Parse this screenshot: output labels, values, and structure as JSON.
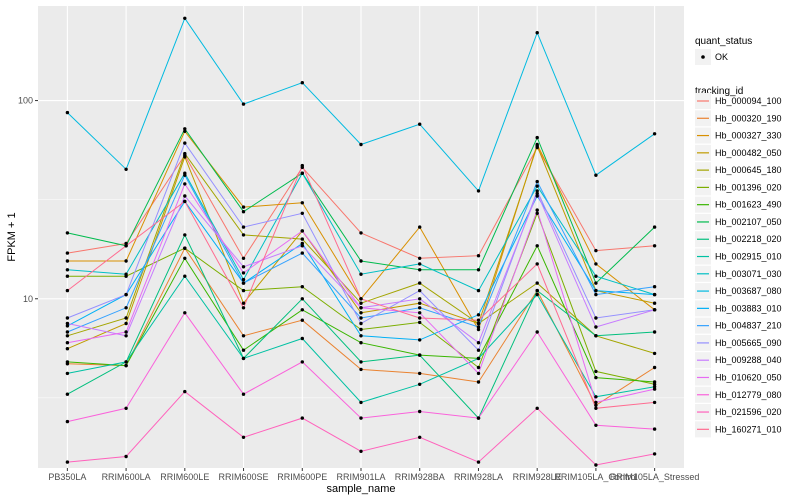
{
  "chart_data": {
    "type": "line",
    "xlabel": "sample_name",
    "ylabel": "FPKM + 1",
    "y_scale": "log10",
    "ylim": [
      1.4,
      300
    ],
    "y_ticks": [
      10,
      100
    ],
    "y_tick_labels": [
      "10",
      "100"
    ],
    "grid": true,
    "legend_position": "right",
    "categories": [
      "PB350LA",
      "RRIM600LA",
      "RRIM600LE",
      "RRIM600SE",
      "RRIM600PE",
      "RRIM901LA",
      "RRIM928BA",
      "RRIM928LA",
      "RRIM928LE",
      "RRIM105LA_Control",
      "RRIM105LA_Stressed"
    ],
    "shape_legend": {
      "title": "quant_status",
      "items": [
        "OK"
      ]
    },
    "color_legend_title": "tracking_id",
    "series": [
      {
        "name": "Hb_000094_100",
        "color": "#F8766D",
        "values": [
          17,
          19,
          53,
          16,
          46,
          21.5,
          16,
          16.5,
          58,
          17.5,
          18.5
        ]
      },
      {
        "name": "Hb_000320_190",
        "color": "#EA8331",
        "values": [
          4.7,
          4.6,
          18,
          6.5,
          7.8,
          4.4,
          4.2,
          3.8,
          11,
          2.9,
          4.5
        ]
      },
      {
        "name": "Hb_000327_330",
        "color": "#D89000",
        "values": [
          15.5,
          15.5,
          70,
          29,
          30.5,
          10,
          23,
          7,
          60,
          15,
          8.8
        ]
      },
      {
        "name": "Hb_000482_050",
        "color": "#C09B00",
        "values": [
          5.6,
          7.5,
          52,
          9.5,
          22,
          8.5,
          9.5,
          7.5,
          59,
          11,
          9.5
        ]
      },
      {
        "name": "Hb_000645_180",
        "color": "#A3A500",
        "values": [
          6.5,
          8,
          54,
          21,
          20,
          9.5,
          12,
          7.5,
          12,
          6.5,
          5.3
        ]
      },
      {
        "name": "Hb_001396_020",
        "color": "#7CAE00",
        "values": [
          13,
          13,
          18,
          11,
          11.5,
          7,
          7.6,
          4.5,
          27,
          4.3,
          3.7
        ]
      },
      {
        "name": "Hb_001623_490",
        "color": "#39B600",
        "values": [
          4.8,
          4.6,
          16,
          5.5,
          8.8,
          6,
          5.2,
          5,
          18.5,
          4,
          3.8
        ]
      },
      {
        "name": "Hb_002107_050",
        "color": "#00BB4E",
        "values": [
          21.5,
          18.5,
          72,
          27.5,
          43,
          15.5,
          14,
          14,
          65,
          12,
          23
        ]
      },
      {
        "name": "Hb_002218_020",
        "color": "#00BF7D",
        "values": [
          3.3,
          4.8,
          21,
          5,
          10,
          4.8,
          5.2,
          2.5,
          11,
          6.5,
          6.8
        ]
      },
      {
        "name": "Hb_002915_010",
        "color": "#00C1A3",
        "values": [
          4.2,
          4.8,
          13,
          5,
          6.3,
          3,
          3.7,
          5,
          10.5,
          3.2,
          3.6
        ]
      },
      {
        "name": "Hb_003071_030",
        "color": "#00BFC4",
        "values": [
          14,
          13.3,
          43,
          12.5,
          43,
          13.3,
          15,
          11,
          37,
          13,
          10.5
        ]
      },
      {
        "name": "Hb_003687_080",
        "color": "#00BAE0",
        "values": [
          87,
          45,
          260,
          96,
          123,
          60,
          76,
          35,
          220,
          42,
          68
        ]
      },
      {
        "name": "Hb_003883_010",
        "color": "#00B0F6",
        "values": [
          7.3,
          10.5,
          31,
          12,
          19,
          6.5,
          6.2,
          8.3,
          33,
          11,
          10.5
        ]
      },
      {
        "name": "Hb_004837_210",
        "color": "#35A2FF",
        "values": [
          6.8,
          9,
          42,
          12,
          17,
          8,
          9,
          7.2,
          39,
          10.5,
          11.5
        ]
      },
      {
        "name": "Hb_005665_090",
        "color": "#9590FF",
        "values": [
          8,
          10.5,
          61,
          23,
          27,
          7.5,
          11,
          5.5,
          35,
          8,
          8.8
        ]
      },
      {
        "name": "Hb_009288_040",
        "color": "#C77CFF",
        "values": [
          7.5,
          6.5,
          33,
          14.5,
          18.5,
          9,
          10,
          6,
          34,
          7.2,
          8.8
        ]
      },
      {
        "name": "Hb_010620_050",
        "color": "#E76BF3",
        "values": [
          6,
          6.8,
          38,
          13.5,
          22,
          9,
          8.5,
          4.2,
          28,
          3,
          3.5
        ]
      },
      {
        "name": "Hb_012779_080",
        "color": "#FA62DB",
        "values": [
          2.4,
          2.8,
          8.5,
          3.3,
          4.8,
          2.5,
          2.7,
          2.5,
          6.8,
          2.3,
          2.2
        ]
      },
      {
        "name": "Hb_021596_020",
        "color": "#FF62BC",
        "values": [
          1.5,
          1.6,
          3.4,
          2,
          2.5,
          1.7,
          2,
          1.5,
          2.8,
          1.45,
          1.65
        ]
      },
      {
        "name": "Hb_160271_010",
        "color": "#FF6C91",
        "values": [
          11,
          18.5,
          31,
          9,
          47,
          10,
          8,
          7.8,
          15,
          2.8,
          3
        ]
      }
    ]
  }
}
